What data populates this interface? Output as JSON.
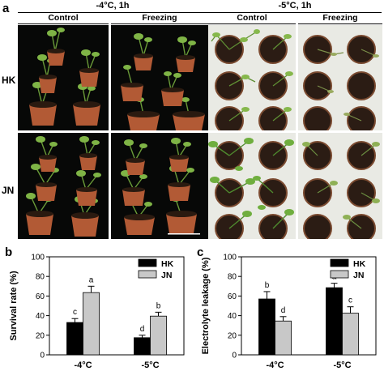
{
  "panel_a": {
    "letter": "a",
    "condition_left": "-4°C, 1h",
    "condition_right": "-5°C, 1h",
    "col_control": "Control",
    "col_freezing": "Freezing",
    "row_hk": "HK",
    "row_jn": "JN"
  },
  "chart_data": [
    {
      "type": "bar",
      "letter": "b",
      "categories": [
        "-4°C",
        "-5°C"
      ],
      "series": [
        {
          "name": "HK",
          "values": [
            33,
            17.5
          ],
          "errors": [
            4,
            2.5
          ],
          "letters": [
            "c",
            "d"
          ],
          "color": "#000000"
        },
        {
          "name": "JN",
          "values": [
            63.5,
            39.5
          ],
          "errors": [
            6.5,
            4
          ],
          "letters": [
            "a",
            "b"
          ],
          "color": "#c8c8c8"
        }
      ],
      "ylabel": "Survival rate (%)",
      "ylim": [
        0,
        100
      ],
      "yticks": [
        0,
        20,
        40,
        60,
        80,
        100
      ],
      "legend": "top-right"
    },
    {
      "type": "bar",
      "letter": "c",
      "categories": [
        "-4°C",
        "-5°C"
      ],
      "series": [
        {
          "name": "HK",
          "values": [
            57,
            68.5
          ],
          "errors": [
            7.5,
            4.5
          ],
          "letters": [
            "b",
            "a"
          ],
          "color": "#000000"
        },
        {
          "name": "JN",
          "values": [
            34.5,
            42.5
          ],
          "errors": [
            4.5,
            6.5
          ],
          "letters": [
            "d",
            "c"
          ],
          "color": "#c8c8c8"
        }
      ],
      "ylabel": "Electrolyte leakage (%)",
      "ylim": [
        0,
        100
      ],
      "yticks": [
        0,
        20,
        40,
        60,
        80,
        100
      ],
      "legend": "top-right"
    }
  ]
}
